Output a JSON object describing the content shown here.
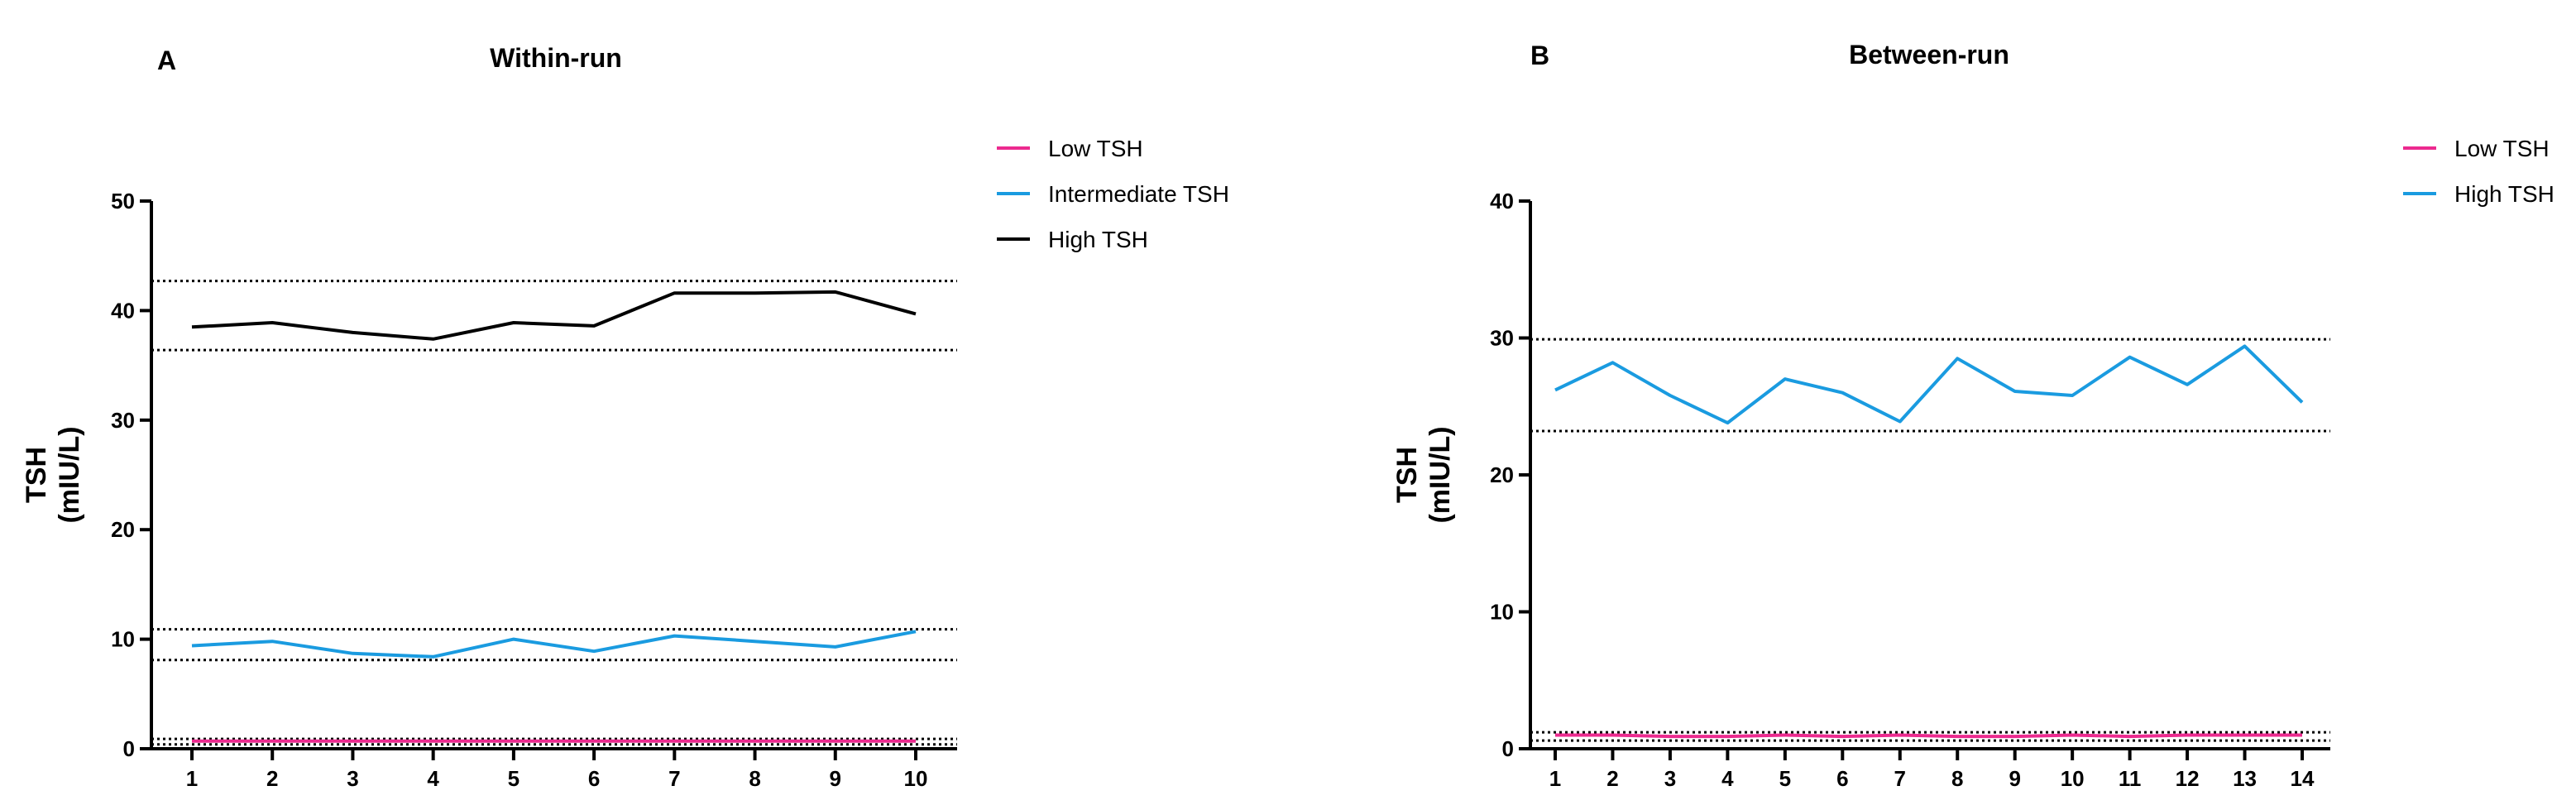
{
  "chart_data": [
    {
      "type": "line",
      "panel_label": "A",
      "title": "Within-run",
      "ylabel": "TSH\n(mIU/L)",
      "xlabel": "",
      "x": [
        1,
        2,
        3,
        4,
        5,
        6,
        7,
        8,
        9,
        10
      ],
      "ylim": [
        0,
        50
      ],
      "yticks": [
        0,
        10,
        20,
        30,
        40,
        50
      ],
      "grid": false,
      "legend_position": "right",
      "series": [
        {
          "name": "Low TSH",
          "color": "#ec2a8f",
          "values": [
            0.7,
            0.7,
            0.7,
            0.7,
            0.7,
            0.7,
            0.7,
            0.7,
            0.7,
            0.7
          ]
        },
        {
          "name": "Intermediate TSH",
          "color": "#1a9be0",
          "values": [
            9.4,
            9.8,
            8.7,
            8.4,
            10.0,
            8.9,
            10.3,
            9.8,
            9.3,
            10.7
          ]
        },
        {
          "name": "High TSH",
          "color": "#000000",
          "values": [
            38.5,
            38.9,
            38.0,
            37.4,
            38.9,
            38.6,
            41.6,
            41.6,
            41.7,
            39.7
          ]
        }
      ],
      "reference_lines": [
        0.4,
        0.9,
        8.1,
        10.9,
        36.4,
        42.7
      ]
    },
    {
      "type": "line",
      "panel_label": "B",
      "title": "Between-run",
      "ylabel": "TSH\n(mIU/L)",
      "xlabel": "",
      "x": [
        1,
        2,
        3,
        4,
        5,
        6,
        7,
        8,
        9,
        10,
        11,
        12,
        13,
        14
      ],
      "ylim": [
        0,
        40
      ],
      "yticks": [
        0,
        10,
        20,
        30,
        40
      ],
      "grid": false,
      "legend_position": "right",
      "series": [
        {
          "name": "Low TSH",
          "color": "#ec2a8f",
          "values": [
            1.0,
            1.0,
            0.9,
            0.9,
            1.0,
            0.9,
            1.0,
            0.9,
            0.9,
            1.0,
            0.9,
            1.0,
            1.0,
            1.0
          ]
        },
        {
          "name": "High TSH",
          "color": "#1a9be0",
          "values": [
            26.2,
            28.2,
            25.8,
            23.8,
            27.0,
            26.0,
            23.9,
            28.5,
            26.1,
            25.8,
            28.6,
            26.6,
            29.4,
            25.3
          ]
        }
      ],
      "reference_lines": [
        0.6,
        1.2,
        23.2,
        29.9
      ]
    }
  ]
}
